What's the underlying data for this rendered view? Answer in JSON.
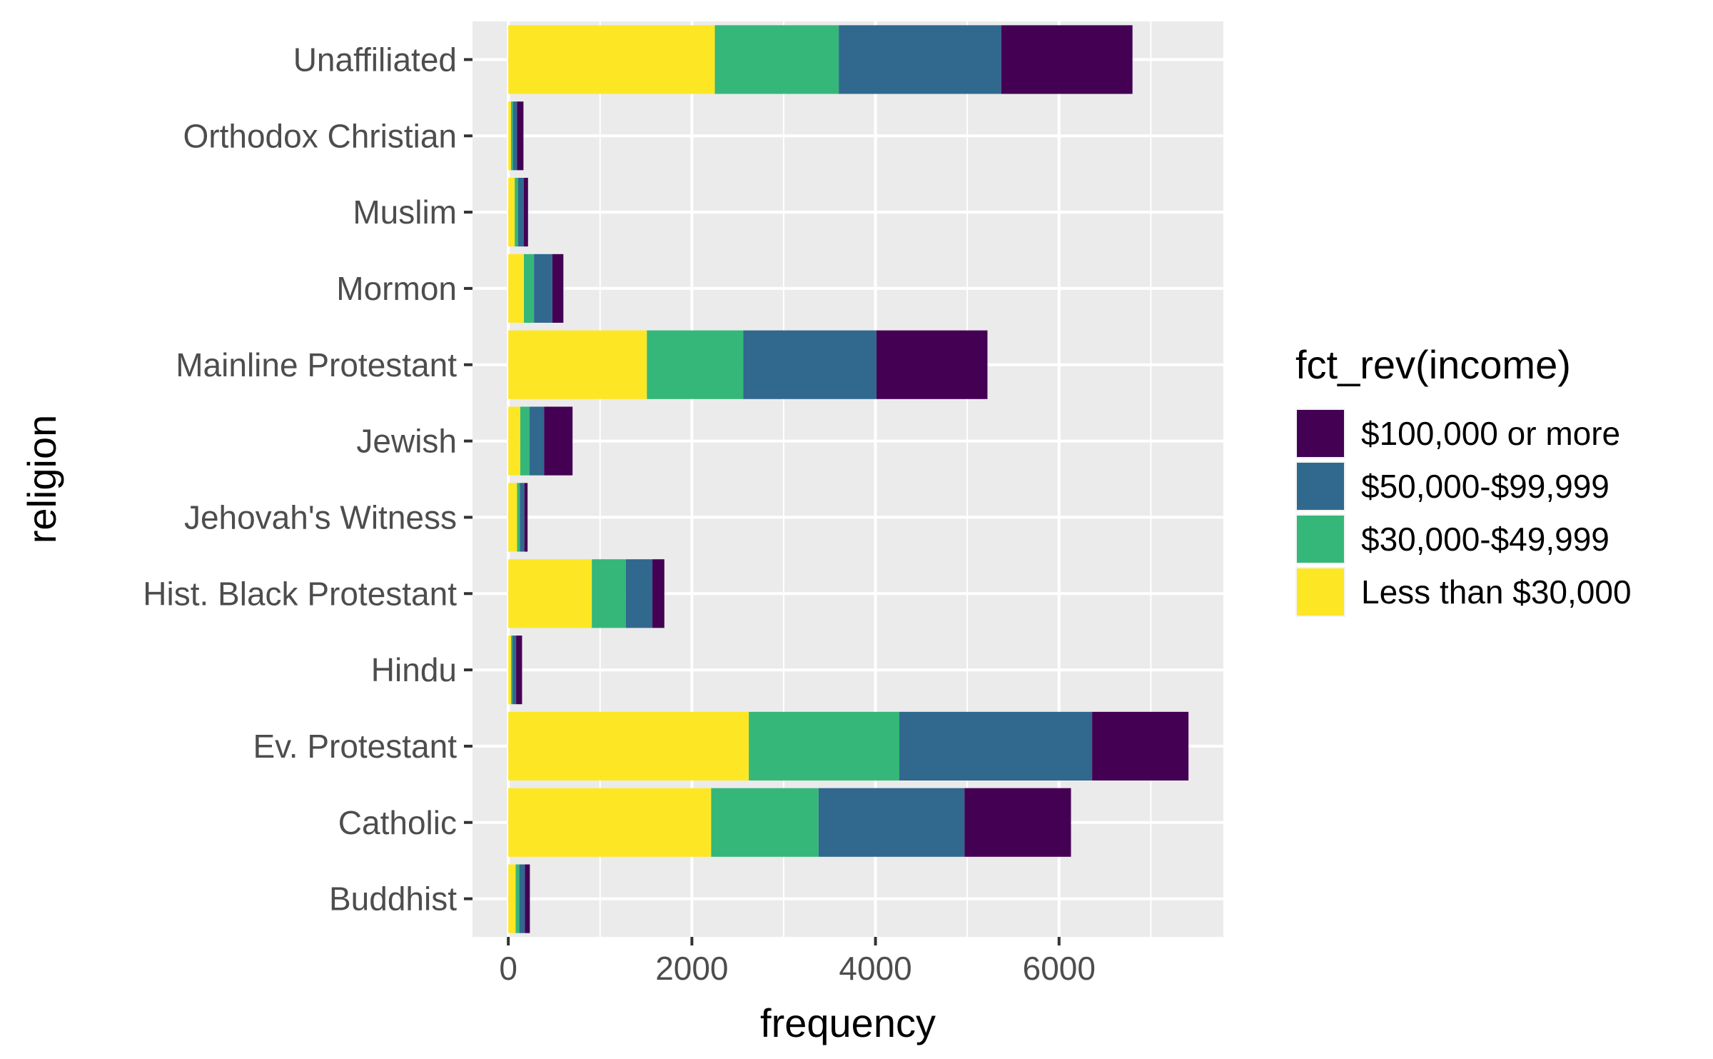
{
  "chart_data": {
    "type": "bar",
    "orientation": "horizontal",
    "stacked": true,
    "categories": [
      "Buddhist",
      "Catholic",
      "Ev. Protestant",
      "Hindu",
      "Hist. Black Protestant",
      "Jehovah's Witness",
      "Jewish",
      "Mainline Protestant",
      "Mormon",
      "Muslim",
      "Orthodox Christian",
      "Unaffiliated"
    ],
    "series": [
      {
        "name": "Less than $30,000",
        "color": "#FDE725",
        "values": [
          80,
          2210,
          2620,
          30,
          910,
          95,
          130,
          1510,
          170,
          70,
          30,
          2250
        ]
      },
      {
        "name": "$30,000-$49,999",
        "color": "#35B779",
        "values": [
          40,
          1170,
          1640,
          15,
          370,
          30,
          100,
          1050,
          110,
          35,
          20,
          1350
        ]
      },
      {
        "name": "$50,000-$99,999",
        "color": "#31688E",
        "values": [
          60,
          1590,
          2100,
          40,
          290,
          50,
          160,
          1450,
          200,
          65,
          45,
          1770
        ]
      },
      {
        "name": "$100,000 or more",
        "color": "#440154",
        "values": [
          55,
          1160,
          1050,
          65,
          130,
          35,
          310,
          1210,
          120,
          45,
          70,
          1430
        ]
      }
    ],
    "legend_order": [
      "$100,000 or more",
      "$50,000-$99,999",
      "$30,000-$49,999",
      "Less than $30,000"
    ],
    "title": "",
    "xlabel": "frequency",
    "ylabel": "religion",
    "legend_title": "fct_rev(income)",
    "xticks": [
      0,
      2000,
      4000,
      6000
    ],
    "xlim": [
      -390,
      7790
    ],
    "grid": true,
    "legend_position": "right"
  }
}
